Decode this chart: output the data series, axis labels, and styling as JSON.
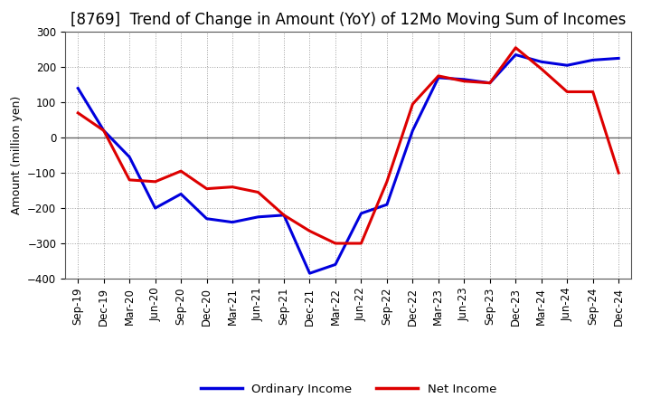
{
  "title": "[8769]  Trend of Change in Amount (YoY) of 12Mo Moving Sum of Incomes",
  "ylabel": "Amount (million yen)",
  "background_color": "#ffffff",
  "plot_bg_color": "#ffffff",
  "grid_color": "#888888",
  "x_labels": [
    "Sep-19",
    "Dec-19",
    "Mar-20",
    "Jun-20",
    "Sep-20",
    "Dec-20",
    "Mar-21",
    "Jun-21",
    "Sep-21",
    "Dec-21",
    "Mar-22",
    "Jun-22",
    "Sep-22",
    "Dec-22",
    "Mar-23",
    "Jun-23",
    "Sep-23",
    "Dec-23",
    "Mar-24",
    "Jun-24",
    "Sep-24",
    "Dec-24"
  ],
  "ordinary_income": [
    140,
    20,
    -55,
    -200,
    -160,
    -230,
    -240,
    -225,
    -220,
    -385,
    -360,
    -215,
    -190,
    20,
    170,
    165,
    155,
    235,
    215,
    205,
    220,
    225
  ],
  "net_income": [
    70,
    20,
    -120,
    -125,
    -95,
    -145,
    -140,
    -155,
    -220,
    -265,
    -300,
    -300,
    -125,
    95,
    175,
    160,
    155,
    255,
    195,
    130,
    130,
    -100
  ],
  "ordinary_color": "#0000dd",
  "net_color": "#dd0000",
  "ylim": [
    -400,
    300
  ],
  "yticks": [
    -400,
    -300,
    -200,
    -100,
    0,
    100,
    200,
    300
  ],
  "legend_labels": [
    "Ordinary Income",
    "Net Income"
  ],
  "line_width": 2.2,
  "title_fontsize": 12,
  "tick_fontsize": 8.5,
  "ylabel_fontsize": 9
}
